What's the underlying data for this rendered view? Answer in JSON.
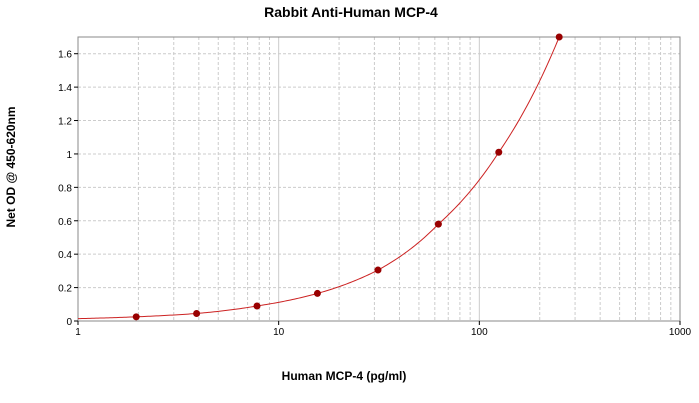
{
  "chart_data": {
    "type": "scatter",
    "title": "Rabbit Anti-Human MCP-4",
    "xlabel": "Human MCP-4 (pg/ml)",
    "ylabel": "Net OD @ 450-620nm",
    "x_scale": "log",
    "xlim": [
      1,
      1000
    ],
    "ylim": [
      0,
      1.7
    ],
    "grid": true,
    "x_ticks": [
      "1",
      "10",
      "100",
      "1000"
    ],
    "y_ticks": [
      "0",
      "0.2",
      "0.4",
      "0.6",
      "0.8",
      "1",
      "1.2",
      "1.4",
      "1.6"
    ],
    "series": [
      {
        "x": [
          1.95,
          3.9,
          7.8,
          15.6,
          31.25,
          62.5,
          125,
          250
        ],
        "y": [
          0.025,
          0.045,
          0.09,
          0.165,
          0.305,
          0.58,
          1.01,
          1.7
        ]
      }
    ],
    "curve": {
      "x0": 1,
      "x1": 250
    },
    "colors": {
      "points": "#990000",
      "curve": "#cc2222",
      "grid": "#cccccc"
    }
  }
}
